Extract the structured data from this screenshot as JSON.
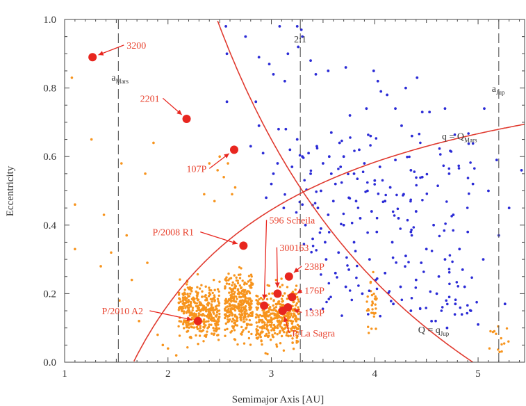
{
  "chart_data": {
    "type": "scatter",
    "xlabel": "Semimajor Axis [AU]",
    "ylabel": "Eccentricity",
    "xlim": [
      1.0,
      5.45
    ],
    "ylim": [
      0.0,
      1.0
    ],
    "x_ticks": [
      "1",
      "2",
      "3",
      "4",
      "5"
    ],
    "x_tick_values": [
      1,
      2,
      3,
      4,
      5
    ],
    "y_ticks": [
      "0.0",
      "0.2",
      "0.4",
      "0.6",
      "0.8",
      "1.0"
    ],
    "y_tick_values": [
      0.0,
      0.2,
      0.4,
      0.6,
      0.8,
      1.0
    ],
    "grid": false,
    "colors": {
      "asteroids": "#f7941d",
      "comets": "#2b2bd6",
      "highlight": "#e8261f",
      "curves": "#e03a2f",
      "axes": "#555555",
      "text_red": "#e8432f"
    },
    "vertical_lines": [
      {
        "x": 1.52,
        "label_main": "a",
        "label_sub": "Mars"
      },
      {
        "x": 3.28,
        "label_main": "2:1",
        "label_sub": ""
      },
      {
        "x": 5.2,
        "label_main": "a",
        "label_sub": "Jup"
      }
    ],
    "curves": [
      {
        "kind": "q_equals_Q",
        "ref_a": 1.666,
        "label_main": "q = Q",
        "label_sub": "Mars",
        "label_x": 4.65,
        "label_y": 0.65
      },
      {
        "kind": "Q_equals_q",
        "ref_a": 4.95,
        "label_main": "Q = q",
        "label_sub": "Jup",
        "label_x": 4.42,
        "label_y": 0.085
      }
    ],
    "highlighted_objects": [
      {
        "name": "3200",
        "a": 1.27,
        "e": 0.89,
        "label_x": 1.6,
        "label_y": 0.915
      },
      {
        "name": "2201",
        "a": 2.18,
        "e": 0.71,
        "label_x": 1.73,
        "label_y": 0.76
      },
      {
        "name": "107P",
        "a": 2.64,
        "e": 0.62,
        "label_x": 2.18,
        "label_y": 0.555
      },
      {
        "name": "P/2008 R1",
        "a": 2.73,
        "e": 0.34,
        "label_x": 1.85,
        "label_y": 0.37
      },
      {
        "name": "596 Scheila",
        "a": 2.93,
        "e": 0.165,
        "label_x": 2.98,
        "label_y": 0.405
      },
      {
        "name": "300163",
        "a": 3.06,
        "e": 0.2,
        "label_x": 3.08,
        "label_y": 0.325
      },
      {
        "name": "238P",
        "a": 3.17,
        "e": 0.25,
        "label_x": 3.32,
        "label_y": 0.27
      },
      {
        "name": "176P",
        "a": 3.2,
        "e": 0.19,
        "label_x": 3.32,
        "label_y": 0.2
      },
      {
        "name": "133P",
        "a": 3.16,
        "e": 0.16,
        "label_x": 3.32,
        "label_y": 0.135
      },
      {
        "name": "P/La Sagra",
        "a": 3.11,
        "e": 0.15,
        "label_x": 3.2,
        "label_y": 0.075
      },
      {
        "name": "P/2010 A2",
        "a": 2.29,
        "e": 0.12,
        "label_x": 1.36,
        "label_y": 0.14
      }
    ],
    "comets_sample": [
      [
        2.56,
        0.98
      ],
      [
        2.75,
        0.95
      ],
      [
        3.08,
        0.98
      ],
      [
        3.25,
        0.98
      ],
      [
        3.29,
        0.97
      ],
      [
        3.3,
        0.95
      ],
      [
        3.26,
        0.92
      ],
      [
        3.16,
        0.9
      ],
      [
        2.88,
        0.89
      ],
      [
        2.98,
        0.87
      ],
      [
        3.02,
        0.84
      ],
      [
        3.13,
        0.82
      ],
      [
        2.57,
        0.9
      ],
      [
        2.57,
        0.76
      ],
      [
        2.85,
        0.76
      ],
      [
        3.38,
        0.88
      ],
      [
        3.55,
        0.85
      ],
      [
        3.43,
        0.84
      ],
      [
        3.72,
        0.86
      ],
      [
        3.99,
        0.85
      ],
      [
        4.03,
        0.82
      ],
      [
        4.06,
        0.79
      ],
      [
        4.12,
        0.78
      ],
      [
        4.41,
        0.83
      ],
      [
        4.3,
        0.8
      ],
      [
        4.2,
        0.74
      ],
      [
        4.46,
        0.73
      ],
      [
        4.53,
        0.73
      ],
      [
        4.26,
        0.69
      ],
      [
        4.36,
        0.66
      ],
      [
        3.92,
        0.74
      ],
      [
        3.76,
        0.72
      ],
      [
        3.96,
        0.66
      ],
      [
        4.68,
        0.74
      ],
      [
        5.06,
        0.74
      ],
      [
        2.88,
        0.69
      ],
      [
        3.07,
        0.68
      ],
      [
        3.14,
        0.68
      ],
      [
        3.25,
        0.65
      ],
      [
        3.3,
        0.6
      ],
      [
        3.18,
        0.62
      ],
      [
        3.44,
        0.63
      ],
      [
        3.56,
        0.6
      ],
      [
        3.7,
        0.6
      ],
      [
        3.85,
        0.62
      ],
      [
        3.9,
        0.58
      ],
      [
        4.05,
        0.57
      ],
      [
        4.2,
        0.59
      ],
      [
        4.35,
        0.56
      ],
      [
        4.46,
        0.54
      ],
      [
        4.72,
        0.55
      ],
      [
        4.95,
        0.52
      ],
      [
        5.18,
        0.59
      ],
      [
        5.1,
        0.5
      ],
      [
        5.42,
        0.56
      ],
      [
        3.06,
        0.58
      ],
      [
        3.02,
        0.55
      ],
      [
        3.38,
        0.55
      ],
      [
        3.48,
        0.5
      ],
      [
        3.62,
        0.52
      ],
      [
        3.75,
        0.48
      ],
      [
        3.93,
        0.5
      ],
      [
        4.1,
        0.47
      ],
      [
        4.28,
        0.49
      ],
      [
        4.4,
        0.44
      ],
      [
        4.57,
        0.4
      ],
      [
        4.76,
        0.43
      ],
      [
        4.9,
        0.38
      ],
      [
        5.3,
        0.45
      ],
      [
        5.2,
        0.37
      ],
      [
        3.0,
        0.52
      ],
      [
        2.95,
        0.48
      ],
      [
        3.12,
        0.45
      ],
      [
        3.3,
        0.46
      ],
      [
        3.55,
        0.43
      ],
      [
        3.7,
        0.4
      ],
      [
        3.86,
        0.42
      ],
      [
        4.02,
        0.38
      ],
      [
        4.17,
        0.35
      ],
      [
        4.3,
        0.31
      ],
      [
        4.5,
        0.33
      ],
      [
        4.68,
        0.3
      ],
      [
        4.85,
        0.27
      ],
      [
        5.05,
        0.3
      ],
      [
        3.52,
        0.35
      ],
      [
        3.65,
        0.32
      ],
      [
        3.8,
        0.35
      ],
      [
        3.95,
        0.3
      ],
      [
        4.1,
        0.26
      ],
      [
        4.25,
        0.22
      ],
      [
        4.4,
        0.24
      ],
      [
        4.6,
        0.2
      ],
      [
        4.78,
        0.17
      ],
      [
        4.93,
        0.15
      ],
      [
        3.62,
        0.26
      ],
      [
        3.72,
        0.22
      ],
      [
        3.88,
        0.2
      ],
      [
        4.01,
        0.24
      ],
      [
        4.18,
        0.17
      ],
      [
        4.35,
        0.15
      ],
      [
        4.55,
        0.12
      ],
      [
        4.7,
        0.1
      ],
      [
        3.2,
        0.57
      ],
      [
        3.36,
        0.61
      ],
      [
        3.5,
        0.58
      ],
      [
        2.92,
        0.61
      ],
      [
        2.8,
        0.63
      ],
      [
        3.58,
        0.67
      ],
      [
        3.66,
        0.64
      ],
      [
        3.8,
        0.55
      ],
      [
        4.0,
        0.53
      ],
      [
        4.15,
        0.51
      ],
      [
        3.45,
        0.45
      ],
      [
        3.6,
        0.47
      ],
      [
        3.48,
        0.39
      ],
      [
        3.4,
        0.36
      ],
      [
        3.33,
        0.4
      ],
      [
        3.58,
        0.55
      ],
      [
        3.67,
        0.57
      ],
      [
        3.82,
        0.47
      ],
      [
        3.97,
        0.44
      ],
      [
        4.23,
        0.42
      ],
      [
        4.35,
        0.38
      ],
      [
        4.45,
        0.29
      ],
      [
        4.62,
        0.25
      ],
      [
        4.87,
        0.22
      ],
      [
        5.0,
        0.11
      ],
      [
        5.26,
        0.17
      ],
      [
        4.82,
        0.33
      ],
      [
        3.53,
        0.3
      ],
      [
        3.75,
        0.27
      ]
    ],
    "asteroid_clusters": [
      {
        "a_min": 2.1,
        "a_max": 2.5,
        "e_center": 0.15,
        "e_spread": 0.08,
        "e_max": 0.3,
        "count": 380
      },
      {
        "a_min": 2.55,
        "a_max": 2.82,
        "e_center": 0.17,
        "e_spread": 0.09,
        "e_max": 0.36,
        "count": 320
      },
      {
        "a_min": 2.85,
        "a_max": 3.27,
        "e_center": 0.13,
        "e_spread": 0.08,
        "e_max": 0.33,
        "count": 380
      },
      {
        "a_min": 3.92,
        "a_max": 4.02,
        "e_center": 0.18,
        "e_spread": 0.08,
        "e_max": 0.3,
        "count": 30
      },
      {
        "a_min": 5.1,
        "a_max": 5.3,
        "e_center": 0.07,
        "e_spread": 0.05,
        "e_max": 0.15,
        "count": 14
      }
    ],
    "asteroid_sparse": [
      [
        1.07,
        0.83
      ],
      [
        1.1,
        0.46
      ],
      [
        1.26,
        0.65
      ],
      [
        1.35,
        0.28
      ],
      [
        1.38,
        0.43
      ],
      [
        1.45,
        0.32
      ],
      [
        1.53,
        0.18
      ],
      [
        1.6,
        0.37
      ],
      [
        1.65,
        0.24
      ],
      [
        1.78,
        0.55
      ],
      [
        1.86,
        0.64
      ],
      [
        1.9,
        0.08
      ],
      [
        1.95,
        0.05
      ],
      [
        2.35,
        0.49
      ],
      [
        2.4,
        0.58
      ],
      [
        2.45,
        0.47
      ],
      [
        2.54,
        0.54
      ],
      [
        2.58,
        0.58
      ],
      [
        2.5,
        0.6
      ],
      [
        2.62,
        0.49
      ],
      [
        2.48,
        0.56
      ],
      [
        2.65,
        0.51
      ],
      [
        2.08,
        0.02
      ],
      [
        2.0,
        0.04
      ],
      [
        1.72,
        0.12
      ],
      [
        1.55,
        0.58
      ],
      [
        1.1,
        0.33
      ],
      [
        1.8,
        0.29
      ]
    ]
  }
}
